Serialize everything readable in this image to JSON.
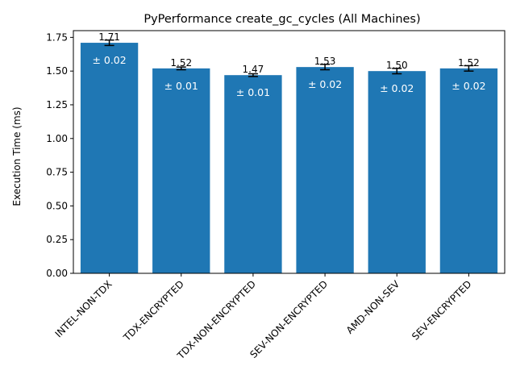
{
  "chart_data": {
    "type": "bar",
    "title": "PyPerformance create_gc_cycles (All Machines)",
    "xlabel": "",
    "ylabel": "Execution Time (ms)",
    "categories": [
      "INTEL-NON-TDX",
      "TDX-ENCRYPTED",
      "TDX-NON-ENCRYPTED",
      "SEV-NON-ENCRYPTED",
      "AMD-NON-SEV",
      "SEV-ENCRYPTED"
    ],
    "values": [
      1.71,
      1.52,
      1.47,
      1.53,
      1.5,
      1.52
    ],
    "value_labels": [
      "1.71",
      "1.52",
      "1.47",
      "1.53",
      "1.50",
      "1.52"
    ],
    "errors": [
      0.02,
      0.01,
      0.01,
      0.02,
      0.02,
      0.02
    ],
    "error_labels": [
      "± 0.02",
      "± 0.01",
      "± 0.01",
      "± 0.02",
      "± 0.02",
      "± 0.02"
    ],
    "ylim": [
      0,
      1.8
    ],
    "yticks": [
      0.0,
      0.25,
      0.5,
      0.75,
      1.0,
      1.25,
      1.5,
      1.75
    ],
    "ytick_labels": [
      "0.00",
      "0.25",
      "0.50",
      "0.75",
      "1.00",
      "1.25",
      "1.50",
      "1.75"
    ],
    "grid": false,
    "bar_color": "#1f77b4",
    "error_color": "#000000"
  }
}
